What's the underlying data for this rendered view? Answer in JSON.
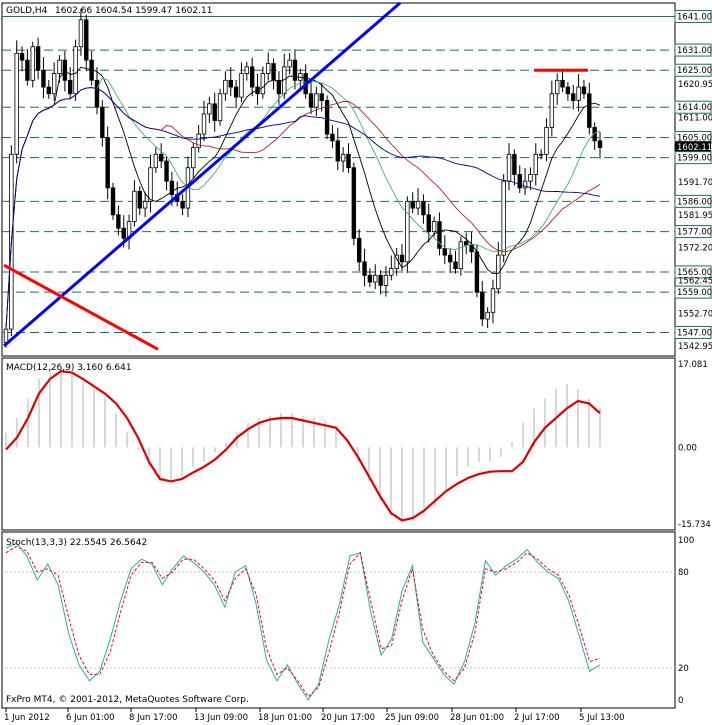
{
  "chart_data": {
    "type": "candlestick",
    "symbol_header": "GOLD,H4",
    "ohlc_header": "1602.66 1604.54 1599.47 1602.11",
    "broker": "FxPro MT4, © 2001-2012, MetaQuotes Software Corp.",
    "price_pane": {
      "ylim": [
        1540,
        1645
      ],
      "y_ticks": [
        "1641.00",
        "1631.00",
        "1625.00",
        "1620.95",
        "1614.00",
        "1611.00",
        "1605.00",
        "1602.11",
        "1599.00",
        "1591.70",
        "1586.00",
        "1581.95",
        "1577.00",
        "1572.20",
        "1565.00",
        "1562.45",
        "1559.00",
        "1552.70",
        "1547.00",
        "1542.95"
      ],
      "current_price": "1602.11",
      "horizontal_levels": [
        1641,
        1631,
        1625,
        1614,
        1605,
        1599,
        1586,
        1577,
        1565,
        1559,
        1547
      ],
      "closes": [
        1548,
        1600,
        1630,
        1628,
        1622,
        1632,
        1625,
        1620,
        1618,
        1624,
        1628,
        1622,
        1618,
        1632,
        1640,
        1628,
        1622,
        1614,
        1605,
        1590,
        1582,
        1578,
        1575,
        1580,
        1589,
        1584,
        1586,
        1596,
        1600,
        1598,
        1592,
        1588,
        1586,
        1584,
        1596,
        1602,
        1606,
        1612,
        1615,
        1610,
        1618,
        1622,
        1620,
        1617,
        1624,
        1626,
        1620,
        1618,
        1624,
        1627,
        1622,
        1618,
        1626,
        1628,
        1622,
        1624,
        1618,
        1614,
        1618,
        1616,
        1606,
        1604,
        1598,
        1600,
        1596,
        1575,
        1568,
        1564,
        1562,
        1564,
        1561,
        1564,
        1566,
        1570,
        1568,
        1586,
        1584,
        1586,
        1582,
        1577,
        1580,
        1572,
        1570,
        1568,
        1566,
        1574,
        1573,
        1571,
        1559,
        1551,
        1553,
        1560,
        1570,
        1592,
        1600,
        1594,
        1590,
        1592,
        1594,
        1600,
        1600,
        1608,
        1618,
        1622,
        1620,
        1618,
        1616,
        1620,
        1618,
        1608,
        1604,
        1602
      ]
    },
    "macd_pane": {
      "label": "MACD(12,26,9) 3.160 6.641",
      "ylim": [
        -15.734,
        17.081
      ],
      "y_ticks": [
        "17.081",
        "0.00",
        "-15.734"
      ],
      "histogram": [
        3,
        6,
        10,
        14,
        16,
        16,
        15,
        13.5,
        12,
        10,
        7,
        3,
        -0.5,
        -4,
        -7,
        -7,
        -6,
        -4,
        -3,
        -1,
        1,
        3,
        5,
        6,
        6.5,
        7,
        7,
        6.5,
        6,
        5.5,
        4,
        0,
        -3,
        -7,
        -11,
        -14,
        -15,
        -15,
        -14,
        -12,
        -9,
        -6,
        -4,
        -3,
        -3,
        -2,
        1,
        5,
        8,
        10,
        12,
        13,
        12,
        10,
        8
      ],
      "signal": [
        -0.5,
        2,
        6,
        11,
        14,
        15.6,
        15.3,
        14,
        12.5,
        11,
        9,
        6,
        2,
        -3,
        -6.5,
        -7,
        -6.5,
        -5.2,
        -4,
        -2.5,
        -0.5,
        2,
        3.7,
        5,
        5.7,
        6,
        6,
        5.5,
        5,
        4.5,
        4,
        1.5,
        -2,
        -6,
        -10,
        -13.5,
        -15,
        -14.5,
        -13,
        -11,
        -9,
        -7.5,
        -6.3,
        -5.5,
        -5,
        -4.9,
        -4.9,
        -3,
        1,
        4,
        6,
        8,
        9.5,
        9,
        7
      ]
    },
    "stoch_pane": {
      "label": "Stoch(13,3,3) 22.5545 26.5642",
      "ylim": [
        0,
        100
      ],
      "y_ticks": [
        "100",
        "80",
        "20",
        "0"
      ],
      "main": [
        95,
        98,
        90,
        75,
        85,
        72,
        42,
        22,
        12,
        18,
        38,
        62,
        82,
        88,
        85,
        72,
        82,
        90,
        86,
        80,
        72,
        58,
        80,
        84,
        60,
        25,
        12,
        22,
        10,
        0,
        10,
        38,
        60,
        90,
        92,
        55,
        28,
        38,
        68,
        84,
        36,
        26,
        16,
        10,
        24,
        48,
        87,
        78,
        84,
        88,
        94,
        86,
        80,
        76,
        62,
        40,
        18,
        22
      ],
      "signal": [
        92,
        96,
        93,
        80,
        82,
        78,
        52,
        28,
        16,
        16,
        30,
        55,
        78,
        86,
        86,
        76,
        80,
        88,
        88,
        82,
        75,
        62,
        76,
        82,
        66,
        32,
        16,
        20,
        12,
        2,
        8,
        30,
        55,
        85,
        92,
        62,
        32,
        34,
        62,
        82,
        44,
        28,
        18,
        12,
        20,
        42,
        82,
        80,
        82,
        86,
        92,
        88,
        82,
        78,
        66,
        46,
        24,
        26
      ]
    },
    "x_ticks": [
      "1 Jun 2012",
      "6 Jun 01:00",
      "8 Jun 17:00",
      "13 Jun 09:00",
      "18 Jun 01:00",
      "20 Jun 17:00",
      "25 Jun 09:00",
      "28 Jun 01:00",
      "2 Jul 17:00",
      "5 Jul 13:00"
    ],
    "colors": {
      "up_down_candle": "#000000",
      "level_lines": "#1b6e5e",
      "trendline_blue": "#0000ff",
      "trendline_red": "#ff0000",
      "ma_blue": "#00008b",
      "ma_red": "#b22222",
      "ma_green": "#3cb371",
      "ma_black": "#000000",
      "macd_signal": "#dd0000",
      "macd_hist": "#b0b0b0",
      "stoch_main": "#20b2aa",
      "stoch_signal": "#ff0000",
      "current_price_bg": "#000000"
    }
  }
}
